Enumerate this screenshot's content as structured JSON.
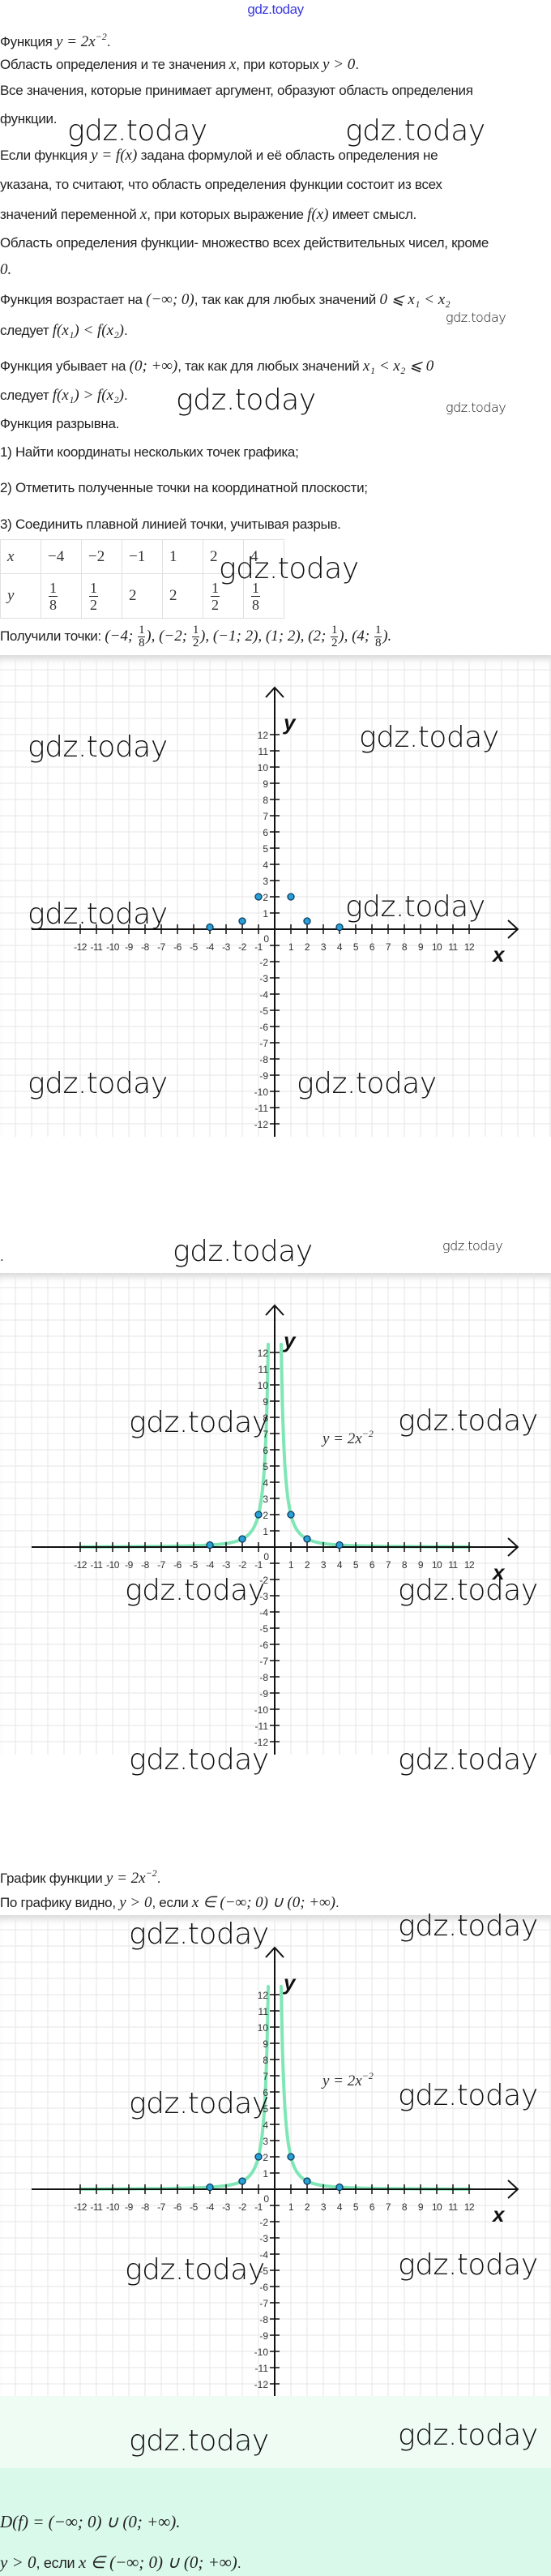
{
  "logo": "gdz.today",
  "watermark": "gdz.today",
  "paragraphs": [
    [
      "Функция ",
      {
        "m": "y = 2x",
        "sup": "−2"
      },
      "."
    ],
    [
      "Область определения и те значения ",
      {
        "m": "x"
      },
      ", при которых ",
      {
        "m": "y > 0"
      },
      "."
    ],
    [
      "Все значения, которые принимает аргумент, образуют область определения"
    ],
    [
      "функции."
    ],
    [
      "Если функция ",
      {
        "m": "y = f(x)"
      },
      " задана формулой и её область определения не"
    ],
    [
      "указана, то считают, что область определения функции состоит из всех"
    ],
    [
      "значений переменной ",
      {
        "m": "x"
      },
      ", при которых выражение ",
      {
        "m": "f(x)"
      },
      " имеет смысл."
    ],
    [
      "Область определения функции- множество всех действительных чисел, кроме"
    ],
    [
      {
        "m": "0."
      }
    ],
    [
      "Функция возрастает на ",
      {
        "m": "(−∞; 0)"
      },
      ", так как для любых значений ",
      {
        "m": "0 ⩽ x₁ < x₂"
      }
    ],
    [
      "следует ",
      {
        "m": "f(x₁) < f(x₂)"
      },
      "."
    ],
    [
      "Функция убывает на ",
      {
        "m": "(0; +∞)"
      },
      ", так как для любых значений ",
      {
        "m": "x₁ < x₂ ⩽ 0"
      }
    ],
    [
      "следует ",
      {
        "m": "f(x₁) > f(x₂)"
      },
      "."
    ],
    [
      "Функция разрывна."
    ],
    [
      "1) Найти координаты нескольких точек графика;"
    ],
    [
      "2) Отметить полученные точки на координатной плоскости;"
    ],
    [
      "3) Соединить плавной линией точки, учитывая разрыв."
    ],
    [
      "Получили точки: ",
      {
        "m": "(−4; "
      },
      {
        "f": [
          "1",
          "8"
        ]
      },
      {
        "m": "), (−2; "
      },
      {
        "f": [
          "1",
          "2"
        ]
      },
      {
        "m": "), (−1; 2), (1; 2), (2; "
      },
      {
        "f": [
          "1",
          "2"
        ]
      },
      {
        "m": "), (4; "
      },
      {
        "f": [
          "1",
          "8"
        ]
      },
      {
        "m": ")."
      }
    ],
    [
      "."
    ],
    [
      "График функции ",
      {
        "m": "y = 2x",
        "sup": "−2"
      },
      "."
    ],
    [
      "По графику видно, ",
      {
        "m": "y > 0"
      },
      ", если ",
      {
        "m": "x ∈ (−∞; 0) ∪ (0; +∞)"
      },
      "."
    ]
  ],
  "table": {
    "header_x": "x",
    "header_y": "y",
    "x": [
      "−4",
      "−2",
      "−1",
      "1",
      "2",
      "4"
    ],
    "y": [
      [
        "1",
        "8"
      ],
      [
        "1",
        "2"
      ],
      "2",
      "2",
      [
        "1",
        "2"
      ],
      [
        "1",
        "8"
      ]
    ]
  },
  "answer": [
    [
      {
        "m": "D(f) = (−∞; 0) ∪ (0; +∞)."
      }
    ],
    [
      {
        "m": "y > 0"
      },
      ", если ",
      {
        "m": "x ∈ (−∞; 0) ∪ (0; +∞)"
      },
      "."
    ]
  ],
  "colors": {
    "logo": "#3b3be0",
    "curve": "#7fe6b6",
    "point": "#2a9fd6",
    "answer_bg": "#d9faea",
    "grid": "#e6e6e6"
  },
  "chart_data": [
    {
      "type": "scatter",
      "xlabel": "x",
      "ylabel": "y",
      "xlim": [
        -12,
        12
      ],
      "ylim": [
        -12,
        12
      ],
      "grid": true,
      "x_ticks": [
        "-12",
        "-11",
        "-10",
        "-9",
        "-8",
        "-7",
        "-6",
        "-5",
        "-4",
        "-3",
        "-2",
        "-1",
        "1",
        "2",
        "3",
        "4",
        "5",
        "6",
        "7",
        "8",
        "9",
        "10",
        "11",
        "12"
      ],
      "y_ticks": [
        "12",
        "11",
        "10",
        "9",
        "8",
        "7",
        "6",
        "5",
        "4",
        "3",
        "2",
        "1",
        "-2",
        "-3",
        "-4",
        "-5",
        "-6",
        "-7",
        "-8",
        "-9",
        "-10",
        "-11",
        "-12"
      ],
      "origin_label": "0",
      "points": [
        [
          -4,
          0.125
        ],
        [
          -2,
          0.5
        ],
        [
          -1,
          2
        ],
        [
          1,
          2
        ],
        [
          2,
          0.5
        ],
        [
          4,
          0.125
        ]
      ]
    },
    {
      "type": "line",
      "xlabel": "x",
      "ylabel": "y",
      "xlim": [
        -12,
        12
      ],
      "ylim": [
        -12,
        12
      ],
      "grid": true,
      "x_ticks": [
        "-12",
        "-11",
        "-10",
        "-9",
        "-8",
        "-7",
        "-6",
        "-5",
        "-4",
        "-3",
        "-2",
        "-1",
        "1",
        "2",
        "3",
        "4",
        "5",
        "6",
        "7",
        "8",
        "9",
        "10",
        "11",
        "12"
      ],
      "y_ticks": [
        "12",
        "11",
        "10",
        "9",
        "8",
        "7",
        "6",
        "5",
        "4",
        "3",
        "2",
        "1",
        "-2",
        "-3",
        "-4",
        "-5",
        "-6",
        "-7",
        "-8",
        "-9",
        "-10",
        "-11",
        "-12"
      ],
      "origin_label": "0",
      "points": [
        [
          -4,
          0.125
        ],
        [
          -2,
          0.5
        ],
        [
          -1,
          2
        ],
        [
          1,
          2
        ],
        [
          2,
          0.5
        ],
        [
          4,
          0.125
        ]
      ],
      "curve": {
        "function": "y = 2x^-2",
        "label": "y = 2x",
        "label_sup": "−2"
      }
    },
    {
      "type": "line",
      "xlabel": "x",
      "ylabel": "y",
      "xlim": [
        -12,
        12
      ],
      "ylim": [
        -12,
        12
      ],
      "grid": true,
      "x_ticks": [
        "-12",
        "-11",
        "-10",
        "-9",
        "-8",
        "-7",
        "-6",
        "-5",
        "-4",
        "-3",
        "-2",
        "-1",
        "1",
        "2",
        "3",
        "4",
        "5",
        "6",
        "7",
        "8",
        "9",
        "10",
        "11",
        "12"
      ],
      "y_ticks": [
        "12",
        "11",
        "10",
        "9",
        "8",
        "7",
        "6",
        "5",
        "4",
        "3",
        "2",
        "1",
        "-2",
        "-3",
        "-4",
        "-5",
        "-6",
        "-7",
        "-8",
        "-9",
        "-10",
        "-11",
        "-12"
      ],
      "origin_label": "0",
      "points": [
        [
          -4,
          0.125
        ],
        [
          -2,
          0.5
        ],
        [
          -1,
          2
        ],
        [
          1,
          2
        ],
        [
          2,
          0.5
        ],
        [
          4,
          0.125
        ]
      ],
      "curve": {
        "function": "y = 2x^-2",
        "label": "y = 2x",
        "label_sup": "−2"
      }
    }
  ]
}
